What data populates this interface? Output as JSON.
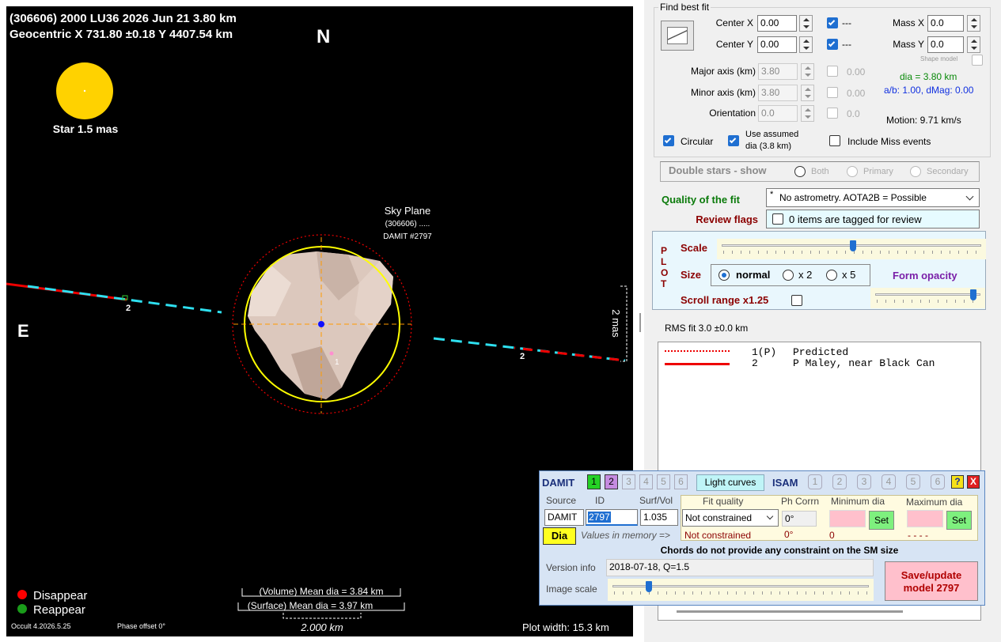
{
  "plot": {
    "header_line1": "(306606) 2000 LU36  2026 Jun 21   3.80 km",
    "header_line2": "Geocentric  X 731.80 ±0.18  Y 4407.54 km",
    "north": "N",
    "east": "E",
    "star_label": "Star 1.5 mas",
    "sky_plane": {
      "title": "Sky Plane",
      "object": "(306606) .....",
      "model": "DAMIT #2797"
    },
    "chord_labels": [
      "2",
      "2",
      "1"
    ],
    "scale_mas": "2 mas",
    "legend": {
      "disappear": "Disappear",
      "reappear": "Reappear"
    },
    "volume_dia": "(Volume) Mean dia = 3.84 km",
    "surface_dia": "(Surface) Mean dia = 3.97 km",
    "scale_km": "2.000 km",
    "version": "Occult 4.2026.5.25",
    "phase_offset": "Phase offset 0°",
    "plot_width": "Plot width: 15.3 km"
  },
  "fit": {
    "group_title": "Find best fit",
    "center_x": {
      "label": "Center X",
      "value": "0.00",
      "flag": "---"
    },
    "center_y": {
      "label": "Center Y",
      "value": "0.00",
      "flag": "---"
    },
    "mass_x": {
      "label": "Mass X",
      "value": "0.0"
    },
    "mass_y": {
      "label": "Mass Y",
      "value": "0.0"
    },
    "shape_model": "Shape model",
    "major_axis": {
      "label": "Major axis (km)",
      "value": "3.80",
      "fit": "0.00"
    },
    "minor_axis": {
      "label": "Minor axis (km)",
      "value": "3.80",
      "fit": "0.00"
    },
    "orientation": {
      "label": "Orientation",
      "value": "0.0",
      "fit": "0.0"
    },
    "dia": "dia = 3.80 km",
    "ab_dmag": "a/b: 1.00, dMag: 0.00",
    "motion": "Motion: 9.71 km/s",
    "circular": "Circular",
    "use_assumed": [
      "Use assumed",
      "dia (3.8 km)"
    ],
    "include_miss": "Include Miss events"
  },
  "double_stars": {
    "label": "Double stars - show",
    "options": [
      "Both",
      "Primary",
      "Secondary"
    ]
  },
  "quality": {
    "label": "Quality of the fit",
    "marker": "*",
    "value": "No astrometry. AOTA2B = Possible"
  },
  "review": {
    "label": "Review flags",
    "value": "0 items are tagged for review"
  },
  "plot_controls": {
    "letters": [
      "P",
      "L",
      "O",
      "T"
    ],
    "scale": "Scale",
    "size": "Size",
    "size_options": [
      "normal",
      "x 2",
      "x 5"
    ],
    "form_opacity": "Form opacity",
    "scroll_range": "Scroll range x1.25"
  },
  "rms": "RMS fit 3.0 ±0.0 km",
  "chords": [
    {
      "id": "1(P)",
      "name": "Predicted"
    },
    {
      "id": "2",
      "name": "P Maley, near Black Can"
    }
  ],
  "damit": {
    "title": "DAMIT",
    "models": [
      "1",
      "2",
      "3",
      "4",
      "5",
      "6"
    ],
    "light_curves": "Light curves",
    "isam": "ISAM",
    "isam_models": [
      "1",
      "2",
      "3",
      "4",
      "5",
      "6"
    ],
    "help": "?",
    "close": "X",
    "headers": {
      "source": "Source",
      "id": "ID",
      "surf_vol": "Surf/Vol",
      "fit_quality": "Fit quality",
      "ph_corrn": "Ph Corrn",
      "min_dia": "Minimum dia",
      "max_dia": "Maximum dia"
    },
    "source": "DAMIT",
    "id": "2797",
    "surf_vol": "1.035",
    "fit_quality": "Not constrained",
    "ph_corrn": "0°",
    "set": "Set",
    "dia_button": "Dia",
    "memory_label": "Values in memory =>",
    "memory": {
      "fit_quality": "Not constrained",
      "ph_corrn": "0°",
      "min_dia": "0",
      "max_dia": "- - - -"
    },
    "constraint_note": "Chords do not provide any constraint on the SM size",
    "version_label": "Version info",
    "version": "2018-07-18, Q=1.5",
    "image_scale": "Image scale",
    "save": [
      "Save/update",
      "model 2797"
    ]
  }
}
